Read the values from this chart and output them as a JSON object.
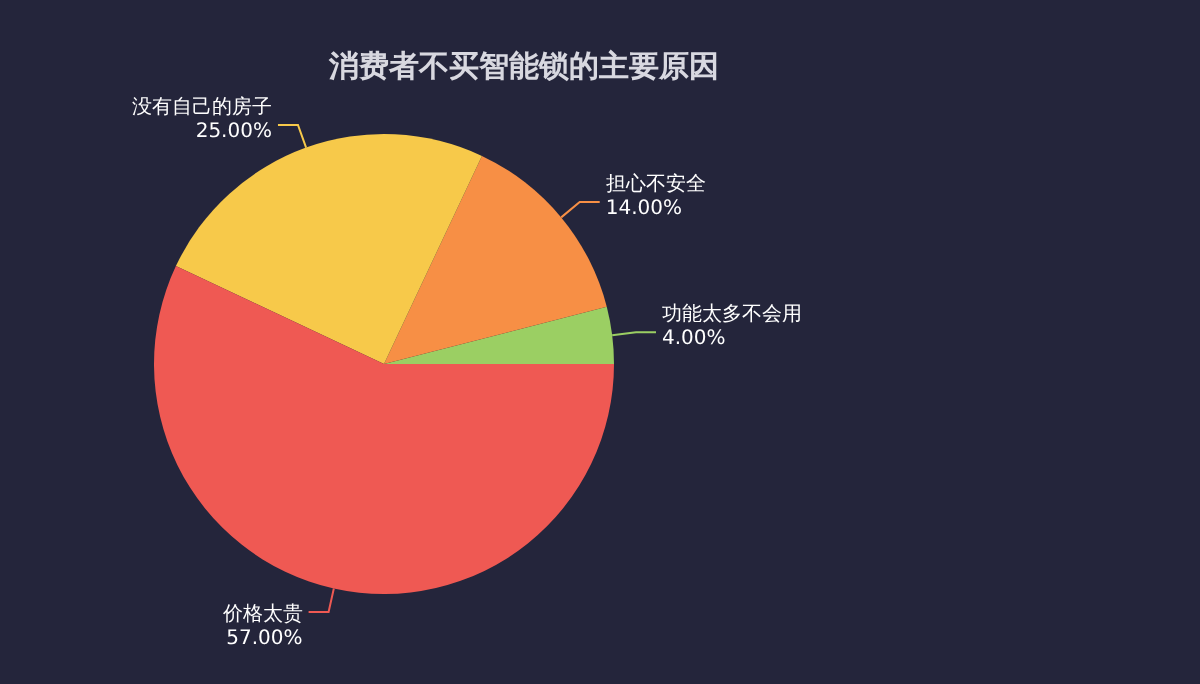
{
  "chart_data": {
    "type": "pie",
    "title": "消费者不买智能锁的主要原因",
    "categories": [
      "功能太多不会用",
      "担心不安全",
      "没有自己的房子",
      "价格太贵"
    ],
    "values": [
      4,
      14,
      25,
      57
    ],
    "colors": [
      "#9bcf63",
      "#f78f45",
      "#f7c94a",
      "#ef5953"
    ],
    "value_labels": [
      "4.00%",
      "14.00%",
      "25.00%",
      "57.00%"
    ]
  }
}
